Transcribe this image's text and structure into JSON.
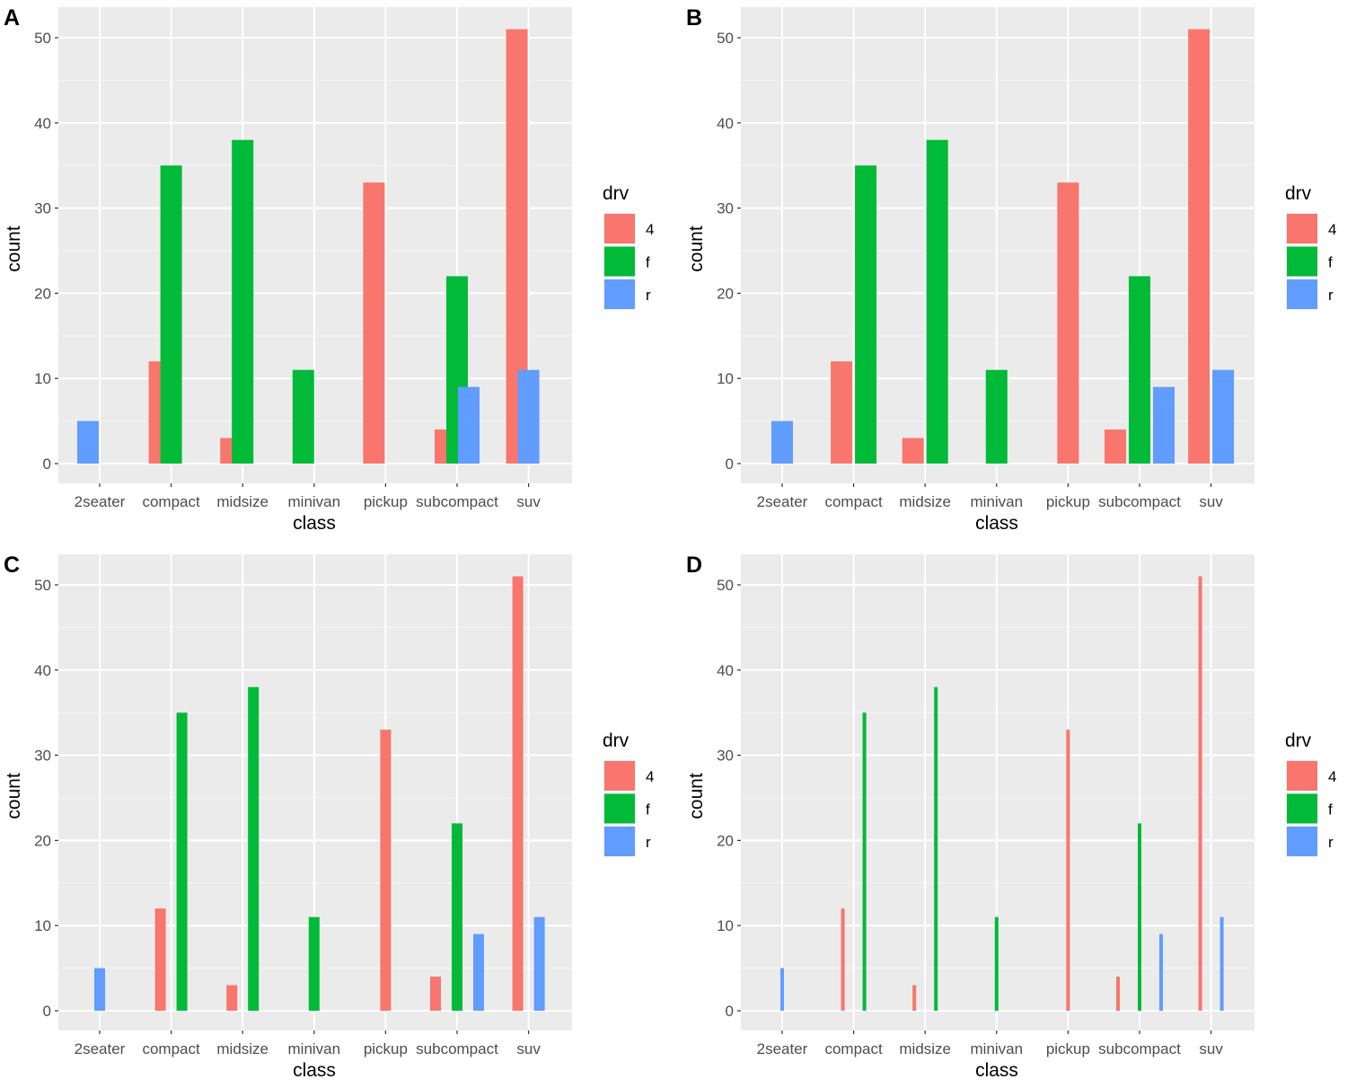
{
  "chart_data": [
    {
      "type": "bar",
      "panel_label": "A",
      "xlabel": "class",
      "ylabel": "count",
      "ylim": [
        0,
        53
      ],
      "yticks": [
        0,
        10,
        20,
        30,
        40,
        50
      ],
      "grid": true,
      "legend": {
        "title": "drv",
        "placement": "right"
      },
      "position": "dodge",
      "categories": [
        "2seater",
        "compact",
        "midsize",
        "minivan",
        "pickup",
        "subcompact",
        "suv"
      ],
      "series": [
        {
          "name": "4",
          "color": "#F8766D",
          "values": [
            null,
            12,
            3,
            null,
            33,
            4,
            51
          ]
        },
        {
          "name": "f",
          "color": "#00BA38",
          "values": [
            null,
            35,
            38,
            11,
            null,
            22,
            null
          ]
        },
        {
          "name": "r",
          "color": "#619CFF",
          "values": [
            5,
            null,
            null,
            null,
            null,
            9,
            11
          ]
        }
      ]
    },
    {
      "type": "bar",
      "panel_label": "B",
      "xlabel": "class",
      "ylabel": "count",
      "ylim": [
        0,
        53
      ],
      "yticks": [
        0,
        10,
        20,
        30,
        40,
        50
      ],
      "grid": true,
      "legend": {
        "title": "drv",
        "placement": "right"
      },
      "position": "dodge2",
      "categories": [
        "2seater",
        "compact",
        "midsize",
        "minivan",
        "pickup",
        "subcompact",
        "suv"
      ],
      "series": [
        {
          "name": "4",
          "color": "#F8766D",
          "values": [
            null,
            12,
            3,
            null,
            33,
            4,
            51
          ]
        },
        {
          "name": "f",
          "color": "#00BA38",
          "values": [
            null,
            35,
            38,
            11,
            null,
            22,
            null
          ]
        },
        {
          "name": "r",
          "color": "#619CFF",
          "values": [
            5,
            null,
            null,
            null,
            null,
            9,
            11
          ]
        }
      ]
    },
    {
      "type": "bar",
      "panel_label": "C",
      "xlabel": "class",
      "ylabel": "count",
      "ylim": [
        0,
        53
      ],
      "yticks": [
        0,
        10,
        20,
        30,
        40,
        50
      ],
      "grid": true,
      "legend": {
        "title": "drv",
        "placement": "right"
      },
      "position": "dodge2 with padding",
      "categories": [
        "2seater",
        "compact",
        "midsize",
        "minivan",
        "pickup",
        "subcompact",
        "suv"
      ],
      "series": [
        {
          "name": "4",
          "color": "#F8766D",
          "values": [
            null,
            12,
            3,
            null,
            33,
            4,
            51
          ]
        },
        {
          "name": "f",
          "color": "#00BA38",
          "values": [
            null,
            35,
            38,
            11,
            null,
            22,
            null
          ]
        },
        {
          "name": "r",
          "color": "#619CFF",
          "values": [
            5,
            null,
            null,
            null,
            null,
            9,
            11
          ]
        }
      ]
    },
    {
      "type": "bar",
      "panel_label": "D",
      "xlabel": "class",
      "ylabel": "count",
      "ylim": [
        0,
        53
      ],
      "yticks": [
        0,
        10,
        20,
        30,
        40,
        50
      ],
      "grid": true,
      "legend": {
        "title": "drv",
        "placement": "right"
      },
      "position": "dodge2 with large padding",
      "categories": [
        "2seater",
        "compact",
        "midsize",
        "minivan",
        "pickup",
        "subcompact",
        "suv"
      ],
      "series": [
        {
          "name": "4",
          "color": "#F8766D",
          "values": [
            null,
            12,
            3,
            null,
            33,
            4,
            51
          ]
        },
        {
          "name": "f",
          "color": "#00BA38",
          "values": [
            null,
            35,
            38,
            11,
            null,
            22,
            null
          ]
        },
        {
          "name": "r",
          "color": "#619CFF",
          "values": [
            5,
            null,
            null,
            null,
            null,
            9,
            11
          ]
        }
      ]
    }
  ]
}
